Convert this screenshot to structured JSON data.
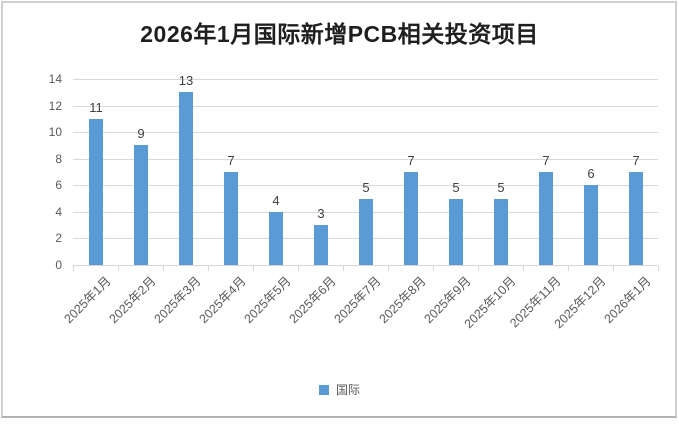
{
  "chart_data": {
    "type": "bar",
    "title": "2026年1月国际新增PCB相关投资项目",
    "categories": [
      "2025年1月",
      "2025年2月",
      "2025年3月",
      "2025年4月",
      "2025年5月",
      "2025年6月",
      "2025年7月",
      "2025年8月",
      "2025年9月",
      "2025年10月",
      "2025年11月",
      "2025年12月",
      "2026年1月"
    ],
    "series": [
      {
        "name": "国际",
        "values": [
          11,
          9,
          13,
          7,
          4,
          3,
          5,
          7,
          5,
          5,
          7,
          6,
          7
        ]
      }
    ],
    "xlabel": "",
    "ylabel": "",
    "ylim": [
      0,
      14
    ],
    "yticks": [
      0,
      2,
      4,
      6,
      8,
      10,
      12,
      14
    ],
    "grid": true,
    "data_labels_shown": true,
    "legend_position": "bottom",
    "colors": {
      "bar": "#5b9bd5",
      "gridline": "#d9d9d9",
      "axis_text": "#595959",
      "data_label": "#404040",
      "title_text": "#1f1f1f",
      "frame_border": "#cfcfcf"
    }
  }
}
